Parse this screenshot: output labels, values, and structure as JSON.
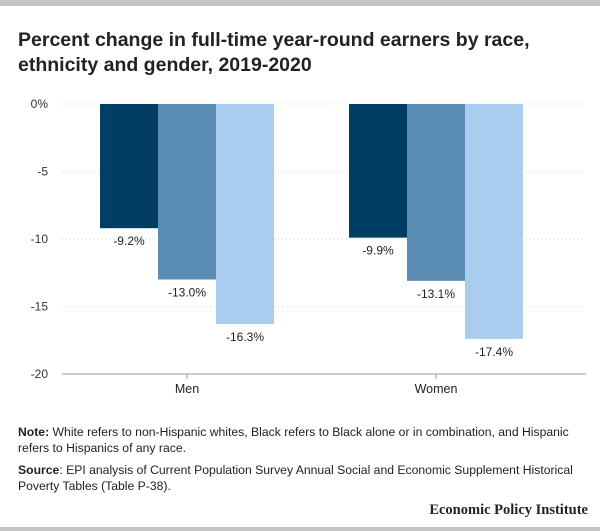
{
  "title": "Percent change in full-time year-round earners by race, ethnicity and gender, 2019-2020",
  "notes": {
    "note_label": "Note:",
    "note_text": "White refers to non-Hispanic whites, Black refers to Black alone or in combination, and Hispanic refers to Hispanics of any race.",
    "source_label": "Source",
    "source_text": ": EPI analysis of Current Population Survey Annual Social and Economic Supplement Historical Poverty Tables (Table P-38)."
  },
  "brand": "Economic Policy Institute",
  "chart_data": {
    "type": "bar",
    "categories": [
      "Men",
      "Women"
    ],
    "series": [
      {
        "values": [
          -9.2,
          -9.9
        ],
        "color": "#003f63"
      },
      {
        "values": [
          -13.0,
          -13.1
        ],
        "color": "#5b8db4"
      },
      {
        "values": [
          -16.3,
          -17.4
        ],
        "color": "#a9cdee"
      }
    ],
    "data_labels": [
      [
        "-9.2%",
        "-9.9%"
      ],
      [
        "-13.0%",
        "-13.1%"
      ],
      [
        "-16.3%",
        "-17.4%"
      ]
    ],
    "yticks": [
      0,
      -5,
      -10,
      -15,
      -20
    ],
    "ytick_labels": [
      "0%",
      "-5",
      "-10",
      "-15",
      "-20"
    ],
    "ylim": [
      -20,
      0
    ],
    "grid": true,
    "legend": "none"
  }
}
